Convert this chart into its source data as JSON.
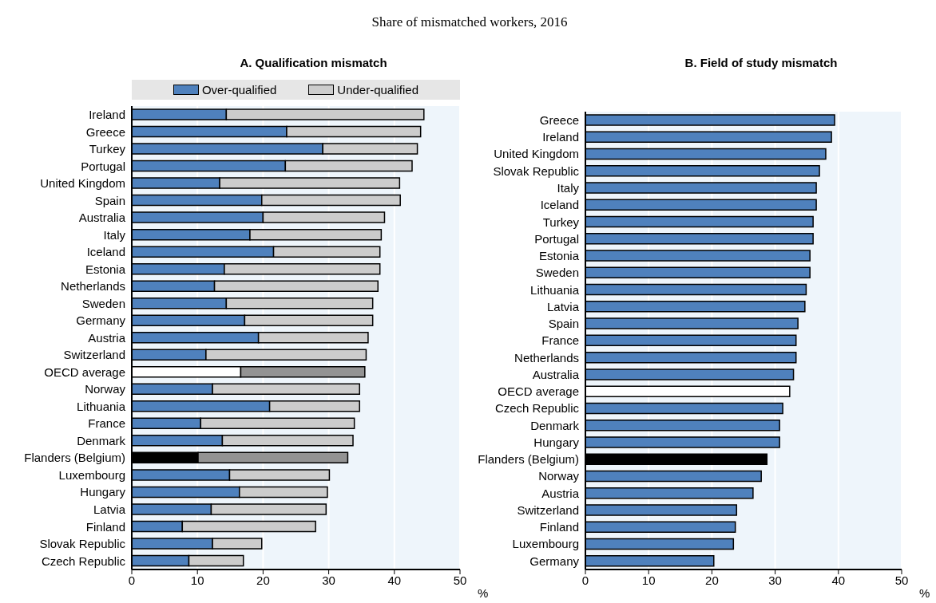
{
  "chart_data": [
    {
      "type": "bar",
      "orientation": "horizontal",
      "stacked": true,
      "title": "A. Qualification mismatch",
      "xlabel": "%",
      "annotations": [
        "Share of mismatched workers, 2016"
      ],
      "legend": "top",
      "grid": "x",
      "xlim": [
        0,
        50
      ],
      "xticks": [
        0,
        10,
        20,
        30,
        40,
        50
      ],
      "categories": [
        "Ireland",
        "Greece",
        "Turkey",
        "Portugal",
        "United Kingdom",
        "Spain",
        "Australia",
        "Italy",
        "Iceland",
        "Estonia",
        "Netherlands",
        "Sweden",
        "Germany",
        "Austria",
        "Switzerland",
        "OECD average",
        "Norway",
        "Lithuania",
        "France",
        "Denmark",
        "Flanders (Belgium)",
        "Luxembourg",
        "Hungary",
        "Latvia",
        "Finland",
        "Slovak Republic",
        "Czech Republic"
      ],
      "series": [
        {
          "name": "Over-qualified",
          "color": "#4f81bd",
          "colors": [
            "#4f81bd",
            "#4f81bd",
            "#4f81bd",
            "#4f81bd",
            "#4f81bd",
            "#4f81bd",
            "#4f81bd",
            "#4f81bd",
            "#4f81bd",
            "#4f81bd",
            "#4f81bd",
            "#4f81bd",
            "#4f81bd",
            "#4f81bd",
            "#4f81bd",
            "#ffffff",
            "#4f81bd",
            "#4f81bd",
            "#4f81bd",
            "#4f81bd",
            "#000000",
            "#4f81bd",
            "#4f81bd",
            "#4f81bd",
            "#4f81bd",
            "#4f81bd",
            "#4f81bd"
          ],
          "values": [
            14.4,
            23.6,
            29.1,
            23.4,
            13.4,
            19.8,
            20.0,
            18.0,
            21.6,
            14.1,
            12.6,
            14.4,
            17.2,
            19.3,
            11.3,
            16.6,
            12.3,
            21.0,
            10.5,
            13.8,
            10.1,
            14.9,
            16.4,
            12.1,
            7.7,
            12.3,
            8.7
          ]
        },
        {
          "name": "Under-qualified",
          "color": "#cccccc",
          "colors": [
            "#cccccc",
            "#cccccc",
            "#cccccc",
            "#cccccc",
            "#cccccc",
            "#cccccc",
            "#cccccc",
            "#cccccc",
            "#cccccc",
            "#cccccc",
            "#cccccc",
            "#cccccc",
            "#cccccc",
            "#cccccc",
            "#cccccc",
            "#939393",
            "#cccccc",
            "#cccccc",
            "#cccccc",
            "#cccccc",
            "#939393",
            "#cccccc",
            "#cccccc",
            "#cccccc",
            "#cccccc",
            "#cccccc",
            "#cccccc"
          ],
          "values": [
            30.1,
            20.4,
            14.4,
            19.3,
            27.4,
            21.1,
            18.5,
            20.0,
            16.2,
            23.7,
            24.9,
            22.3,
            19.5,
            16.7,
            24.4,
            18.9,
            22.4,
            13.7,
            23.4,
            19.9,
            22.8,
            15.2,
            13.4,
            17.5,
            20.3,
            7.5,
            8.3
          ]
        }
      ]
    },
    {
      "type": "bar",
      "orientation": "horizontal",
      "title": "B. Field of study mismatch",
      "xlabel": "%",
      "grid": "x",
      "xlim": [
        0,
        50
      ],
      "xticks": [
        0,
        10,
        20,
        30,
        40,
        50
      ],
      "categories": [
        "Greece",
        "Ireland",
        "United Kingdom",
        "Slovak Republic",
        "Italy",
        "Iceland",
        "Turkey",
        "Portugal",
        "Estonia",
        "Sweden",
        "Lithuania",
        "Latvia",
        "Spain",
        "France",
        "Netherlands",
        "Australia",
        "OECD average",
        "Czech Republic",
        "Denmark",
        "Hungary",
        "Flanders (Belgium)",
        "Norway",
        "Austria",
        "Switzerland",
        "Finland",
        "Luxembourg",
        "Germany"
      ],
      "series": [
        {
          "color": "#4f81bd",
          "colors": [
            "#4f81bd",
            "#4f81bd",
            "#4f81bd",
            "#4f81bd",
            "#4f81bd",
            "#4f81bd",
            "#4f81bd",
            "#4f81bd",
            "#4f81bd",
            "#4f81bd",
            "#4f81bd",
            "#4f81bd",
            "#4f81bd",
            "#4f81bd",
            "#4f81bd",
            "#4f81bd",
            "#ffffff",
            "#4f81bd",
            "#4f81bd",
            "#4f81bd",
            "#000000",
            "#4f81bd",
            "#4f81bd",
            "#4f81bd",
            "#4f81bd",
            "#4f81bd",
            "#4f81bd"
          ],
          "values": [
            39.4,
            38.9,
            38.0,
            37.0,
            36.5,
            36.5,
            36.0,
            36.0,
            35.5,
            35.5,
            34.9,
            34.7,
            33.6,
            33.3,
            33.3,
            32.9,
            32.3,
            31.2,
            30.7,
            30.7,
            28.7,
            27.8,
            26.5,
            23.9,
            23.7,
            23.4,
            20.3
          ]
        }
      ]
    }
  ]
}
